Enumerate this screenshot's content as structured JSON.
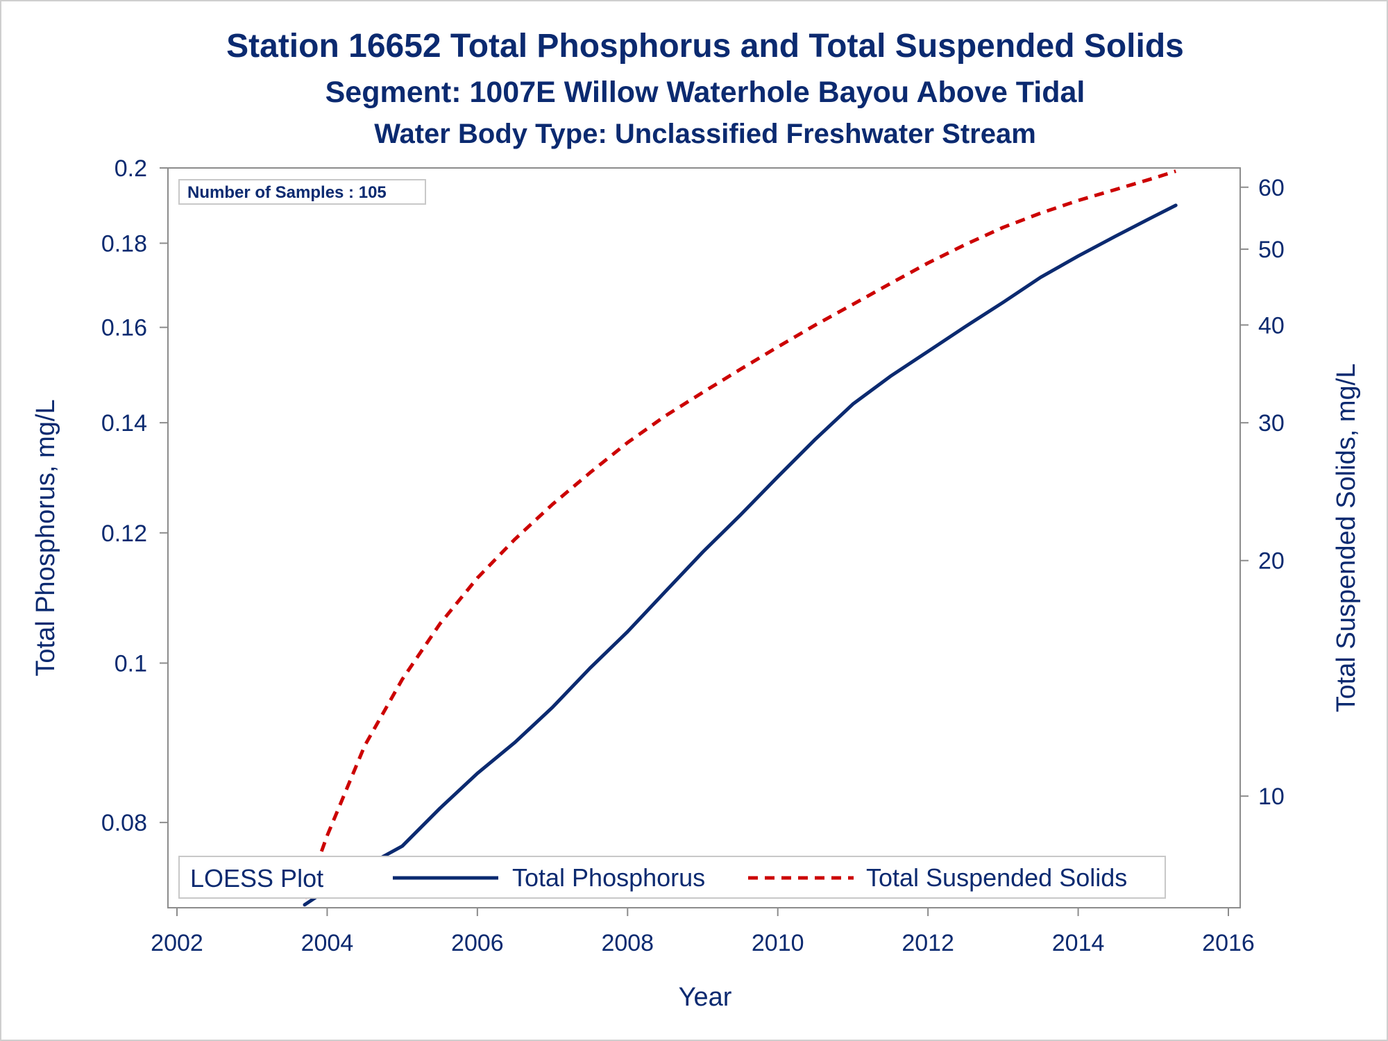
{
  "chart_data": {
    "type": "line",
    "title": "Station 16652  Total Phosphorus and Total Suspended Solids",
    "subtitle": "Segment: 1007E  Willow Waterhole Bayou Above Tidal",
    "subtitle2": "Water Body Type: Unclassified Freshwater Stream",
    "xlabel": "Year",
    "ylabel_left": "Total Phosphorus, mg/L",
    "ylabel_right": "Total Suspended Solids, mg/L",
    "inset": "Number of Samples : 105",
    "legend_title": "LOESS Plot",
    "legend_placement": "bottom-inside",
    "x_ticks": [
      "2002",
      "2004",
      "2006",
      "2008",
      "2010",
      "2012",
      "2014",
      "2016"
    ],
    "xlim": [
      2002,
      2016
    ],
    "y_left_ticks": [
      "0.08",
      "0.1",
      "0.12",
      "0.14",
      "0.16",
      "0.18",
      "0.2"
    ],
    "y_left_scale": "log",
    "y_left_lim": [
      0.071,
      0.2
    ],
    "y_right_ticks": [
      "10",
      "20",
      "30",
      "40",
      "50",
      "60"
    ],
    "y_right_scale": "log",
    "y_right_lim": [
      7.2,
      63.5
    ],
    "grid": false,
    "series": [
      {
        "name": "Total Phosphorus",
        "axis": "left",
        "color": "#0b2a70",
        "style": "solid",
        "x": [
          2003.7,
          2004.0,
          2004.5,
          2005.0,
          2005.5,
          2006.0,
          2006.5,
          2007.0,
          2007.5,
          2008.0,
          2008.5,
          2009.0,
          2009.5,
          2010.0,
          2010.5,
          2011.0,
          2011.5,
          2012.0,
          2012.5,
          2013.0,
          2013.5,
          2014.0,
          2014.5,
          2015.0,
          2015.3
        ],
        "values": [
          0.0713,
          0.0728,
          0.0752,
          0.0774,
          0.0816,
          0.0857,
          0.0895,
          0.094,
          0.0993,
          0.1045,
          0.1105,
          0.1168,
          0.123,
          0.1298,
          0.1368,
          0.1437,
          0.1494,
          0.1547,
          0.1602,
          0.1657,
          0.1716,
          0.1768,
          0.1818,
          0.1868,
          0.1898
        ]
      },
      {
        "name": "Total Suspended Solids",
        "axis": "right",
        "color": "#cc0000",
        "style": "dashed",
        "x": [
          2003.7,
          2004.0,
          2004.5,
          2005.0,
          2005.5,
          2006.0,
          2006.5,
          2007.0,
          2007.5,
          2008.0,
          2008.5,
          2009.0,
          2009.5,
          2010.0,
          2010.5,
          2011.0,
          2011.5,
          2012.0,
          2012.5,
          2013.0,
          2013.5,
          2014.0,
          2014.5,
          2015.0,
          2015.3
        ],
        "values": [
          7.4,
          8.9,
          11.6,
          14.1,
          16.6,
          19.0,
          21.3,
          23.6,
          25.9,
          28.3,
          30.6,
          32.8,
          35.1,
          37.5,
          40.0,
          42.5,
          45.2,
          48.0,
          50.7,
          53.3,
          55.6,
          57.7,
          59.6,
          61.6,
          62.9
        ]
      }
    ]
  }
}
